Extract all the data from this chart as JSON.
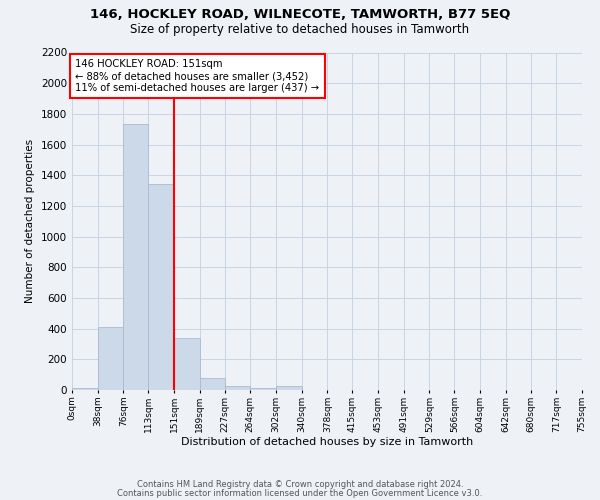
{
  "title": "146, HOCKLEY ROAD, WILNECOTE, TAMWORTH, B77 5EQ",
  "subtitle": "Size of property relative to detached houses in Tamworth",
  "xlabel": "Distribution of detached houses by size in Tamworth",
  "ylabel": "Number of detached properties",
  "bar_edges": [
    0,
    38,
    76,
    113,
    151,
    189,
    227,
    264,
    302,
    340,
    378,
    415,
    453,
    491,
    529,
    566,
    604,
    642,
    680,
    717,
    755
  ],
  "bar_heights": [
    15,
    410,
    1735,
    1345,
    340,
    75,
    28,
    15,
    25,
    0,
    0,
    0,
    0,
    0,
    0,
    0,
    0,
    0,
    0,
    0
  ],
  "bar_color": "#ccd9e8",
  "bar_edgecolor": "#aabbd0",
  "grid_color": "#c8d4e4",
  "vline_x": 151,
  "vline_color": "red",
  "annotation_title": "146 HOCKLEY ROAD: 151sqm",
  "annotation_line1": "← 88% of detached houses are smaller (3,452)",
  "annotation_line2": "11% of semi-detached houses are larger (437) →",
  "annotation_box_color": "white",
  "annotation_box_edgecolor": "red",
  "ylim": [
    0,
    2200
  ],
  "yticks": [
    0,
    200,
    400,
    600,
    800,
    1000,
    1200,
    1400,
    1600,
    1800,
    2000,
    2200
  ],
  "tick_labels": [
    "0sqm",
    "38sqm",
    "76sqm",
    "113sqm",
    "151sqm",
    "189sqm",
    "227sqm",
    "264sqm",
    "302sqm",
    "340sqm",
    "378sqm",
    "415sqm",
    "453sqm",
    "491sqm",
    "529sqm",
    "566sqm",
    "604sqm",
    "642sqm",
    "680sqm",
    "717sqm",
    "755sqm"
  ],
  "footer1": "Contains HM Land Registry data © Crown copyright and database right 2024.",
  "footer2": "Contains public sector information licensed under the Open Government Licence v3.0.",
  "bg_color": "#eef2f7"
}
